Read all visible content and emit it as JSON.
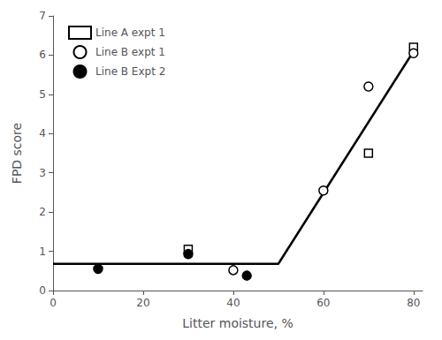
{
  "chart_data": {
    "type": "scatter",
    "xlabel": "Litter moisture, %",
    "ylabel": "FPD score",
    "xlim": [
      0,
      82
    ],
    "xticks": [
      0,
      20,
      40,
      60,
      80
    ],
    "ylim": [
      0,
      7
    ],
    "yticks": [
      0,
      1,
      2,
      3,
      4,
      5,
      6,
      7
    ],
    "grid": false,
    "legend": "upper left",
    "series": [
      {
        "name": "Line A expt 1",
        "type": "scatter",
        "marker": "square_open",
        "color": "black",
        "x": [
          30,
          70,
          80
        ],
        "values": [
          1.05,
          3.5,
          6.2
        ]
      },
      {
        "name": "Line B expt 1",
        "type": "scatter",
        "marker": "circle_open",
        "color": "black",
        "x": [
          40,
          60,
          70,
          80
        ],
        "values": [
          0.52,
          2.55,
          5.2,
          6.05
        ]
      },
      {
        "name": "Line B Expt 2",
        "type": "scatter",
        "marker": "circle",
        "color": "black",
        "x": [
          10,
          30,
          43
        ],
        "values": [
          0.55,
          0.93,
          0.38
        ]
      },
      {
        "type": "line",
        "line_style": "solid",
        "color": "black",
        "x": [
          0,
          50,
          80
        ],
        "values": [
          0.68,
          0.68,
          6.1
        ]
      }
    ]
  }
}
